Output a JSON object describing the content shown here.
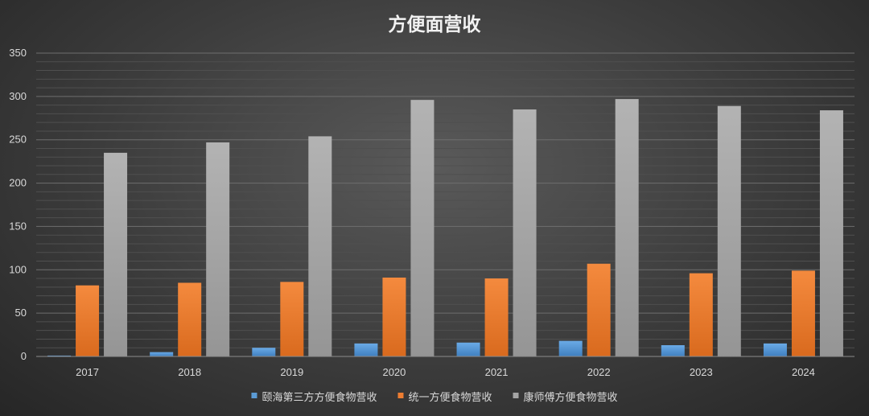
{
  "chart_data": {
    "type": "bar",
    "title": "方便面营收",
    "categories": [
      "2017",
      "2018",
      "2019",
      "2020",
      "2021",
      "2022",
      "2023",
      "2024"
    ],
    "ylim": [
      0,
      350
    ],
    "yticks": [
      0,
      50,
      100,
      150,
      200,
      250,
      300,
      350
    ],
    "grid": true,
    "legend_position": "bottom",
    "series": [
      {
        "name": "颐海第三方方便食物营收",
        "color": "#5b9bd5",
        "values": [
          1,
          5,
          10,
          15,
          16,
          18,
          13,
          15
        ]
      },
      {
        "name": "统一方便食物营收",
        "color": "#ed7d31",
        "values": [
          82,
          85,
          86,
          91,
          90,
          107,
          96,
          99
        ]
      },
      {
        "name": "康师傅方便食物营收",
        "color": "#a5a5a5",
        "values": [
          235,
          247,
          254,
          296,
          285,
          297,
          289,
          284
        ]
      }
    ]
  }
}
